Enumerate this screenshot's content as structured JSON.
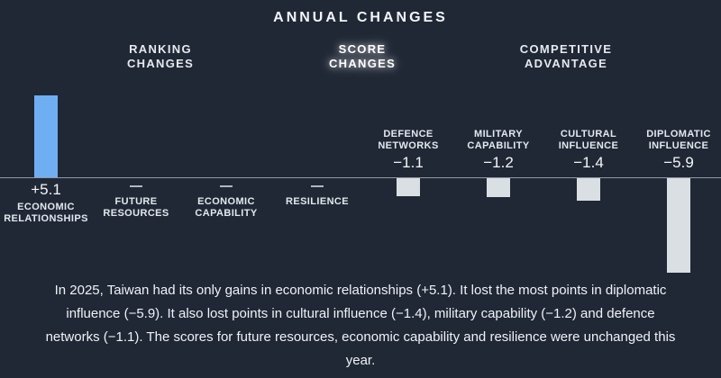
{
  "header": {
    "title": "ANNUAL CHANGES",
    "tabs": [
      {
        "label": "RANKING CHANGES",
        "active": false
      },
      {
        "label": "SCORE CHANGES",
        "active": true
      },
      {
        "label": "COMPETITIVE ADVANTAGE",
        "active": false
      }
    ]
  },
  "chart_data": {
    "type": "bar",
    "title": "ANNUAL CHANGES",
    "categories": [
      "ECONOMIC RELATIONSHIPS",
      "FUTURE RESOURCES",
      "ECONOMIC CAPABILITY",
      "RESILIENCE",
      "DEFENCE NETWORKS",
      "MILITARY CAPABILITY",
      "CULTURAL INFLUENCE",
      "DIPLOMATIC INFLUENCE"
    ],
    "values": [
      5.1,
      0,
      0,
      0,
      -1.1,
      -1.2,
      -1.4,
      -5.9
    ],
    "value_labels": [
      "+5.1",
      "—",
      "—",
      "—",
      "−1.1",
      "−1.2",
      "−1.4",
      "−5.9"
    ],
    "baseline": 0,
    "ylim": [
      -6.5,
      5.5
    ],
    "grid": false,
    "legend": false,
    "xlabel": "",
    "ylabel": "",
    "colors": {
      "positive": "#6FAEF3",
      "negative": "#D9DFE3",
      "baseline_line": "#CDD6DF",
      "background": "#202836"
    }
  },
  "caption": {
    "text": "In 2025, Taiwan had its only gains in economic relationships (+5.1). It lost the most points in diplomatic influence (−5.9). It also lost points in cultural influence (−1.4), military capability (−1.2) and defence networks (−1.1). The scores for future resources, economic capability and resilience were unchanged this year."
  }
}
